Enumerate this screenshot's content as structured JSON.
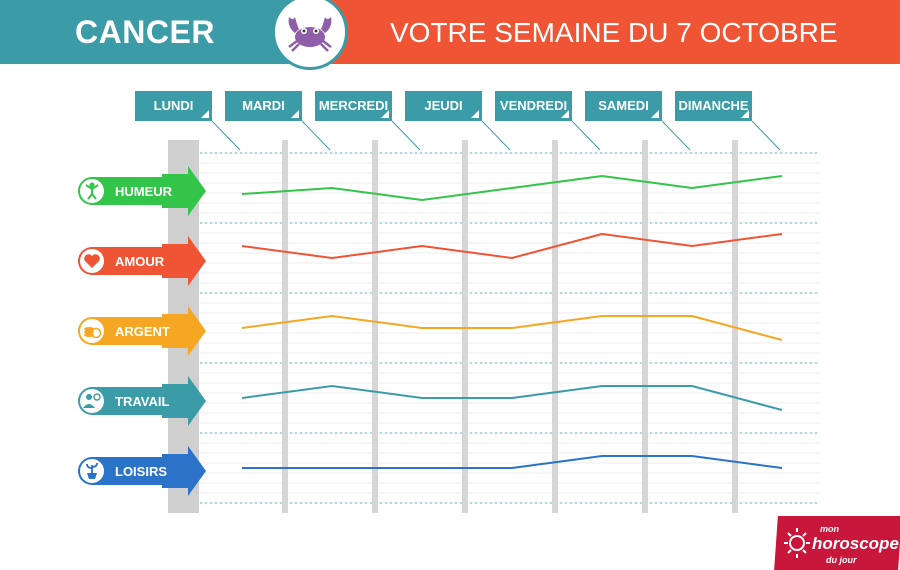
{
  "header": {
    "sign": "CANCER",
    "title": "VOTRE SEMAINE DU 7 OCTOBRE"
  },
  "colors": {
    "teal": "#3b9ca8",
    "orange_red": "#ef5434",
    "humeur": "#33c44a",
    "amour": "#ef5434",
    "argent": "#f5a623",
    "travail": "#3b9ca8",
    "loisirs": "#2a73c9"
  },
  "chart_data": {
    "type": "line",
    "categories": [
      "LUNDI",
      "MARDI",
      "MERCREDI",
      "JEUDI",
      "VENDREDI",
      "SAMEDI",
      "DIMANCHE"
    ],
    "series": [
      {
        "name": "HUMEUR",
        "values": [
          4,
          5,
          3,
          5,
          7,
          5,
          7
        ]
      },
      {
        "name": "AMOUR",
        "values": [
          7,
          5,
          7,
          5,
          9,
          7,
          9
        ]
      },
      {
        "name": "ARGENT",
        "values": [
          5,
          7,
          5,
          5,
          7,
          7,
          3
        ]
      },
      {
        "name": "TRAVAIL",
        "values": [
          5,
          7,
          5,
          5,
          7,
          7,
          3
        ]
      },
      {
        "name": "LOISIRS",
        "values": [
          5,
          5,
          5,
          5,
          7,
          7,
          5
        ]
      }
    ],
    "ylim": [
      0,
      10
    ],
    "legend": "left"
  },
  "categories": [
    {
      "name": "HUMEUR",
      "icon": "person-cheering-icon"
    },
    {
      "name": "AMOUR",
      "icon": "heart-icon"
    },
    {
      "name": "ARGENT",
      "icon": "coins-icon"
    },
    {
      "name": "TRAVAIL",
      "icon": "worker-icon"
    },
    {
      "name": "LOISIRS",
      "icon": "plant-icon"
    }
  ],
  "logo": {
    "line1": "mon",
    "line2": "horoscope",
    "line3": "du jour"
  }
}
